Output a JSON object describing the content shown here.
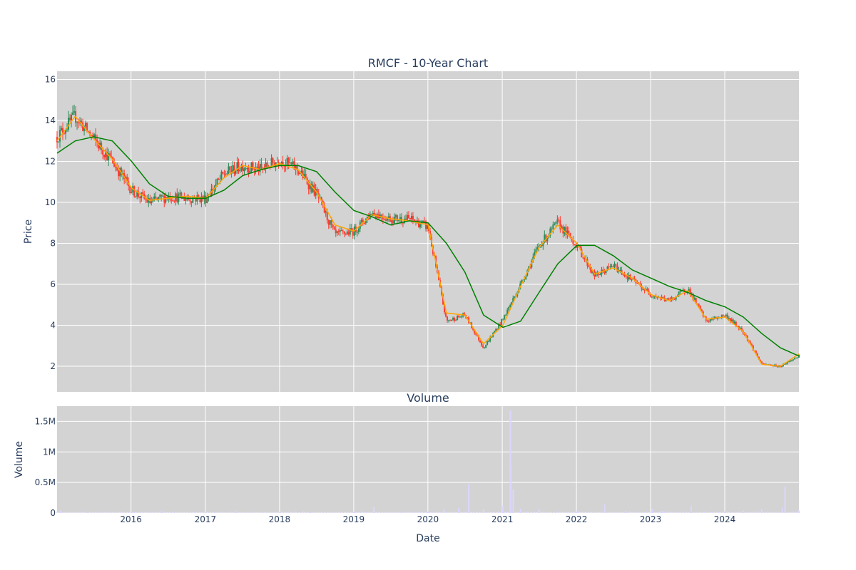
{
  "chart_data": [
    {
      "type": "candlestick",
      "title": "RMCF - 10-Year Chart",
      "ylabel": "Price",
      "ylim": [
        0.75,
        16.4
      ],
      "yticks": [
        2,
        4,
        6,
        8,
        10,
        12,
        14,
        16
      ],
      "x_range": [
        "2015-01-02",
        "2024-12-31"
      ],
      "grid": true,
      "background": "#d3d3d3",
      "up_color": "#2e8b57",
      "down_color": "#ff3b30",
      "series": [
        {
          "name": "",
          "kind": "ohlc",
          "color": "#ff3b30",
          "x": [
            "2015-01-02",
            "2015-04-01",
            "2015-07-01",
            "2015-10-01",
            "2016-01-04",
            "2016-04-01",
            "2016-07-01",
            "2016-10-03",
            "2017-01-03",
            "2017-04-03",
            "2017-07-03",
            "2017-10-02",
            "2018-01-02",
            "2018-04-02",
            "2018-07-02",
            "2018-10-01",
            "2019-01-02",
            "2019-04-01",
            "2019-07-01",
            "2019-10-01",
            "2020-01-02",
            "2020-04-01",
            "2020-07-01",
            "2020-10-01",
            "2021-01-04",
            "2021-04-01",
            "2021-07-01",
            "2021-10-01",
            "2022-01-03",
            "2022-04-01",
            "2022-07-01",
            "2022-10-03",
            "2023-01-03",
            "2023-04-03",
            "2023-07-03",
            "2023-10-02",
            "2024-01-02",
            "2024-04-01",
            "2024-07-01",
            "2024-10-01",
            "2024-12-31"
          ],
          "close": [
            13.2,
            14.2,
            13.1,
            12.0,
            10.6,
            10.0,
            10.3,
            10.2,
            10.2,
            11.4,
            11.8,
            11.6,
            12.1,
            11.6,
            10.4,
            8.4,
            8.6,
            9.5,
            9.2,
            9.2,
            8.8,
            4.2,
            4.5,
            2.9,
            4.3,
            6.0,
            7.9,
            9.0,
            7.9,
            6.4,
            6.9,
            6.2,
            5.5,
            5.2,
            5.8,
            4.2,
            4.5,
            3.7,
            2.1,
            2.0,
            2.5
          ]
        },
        {
          "name": "",
          "kind": "moving_average_short",
          "color": "#ffa500",
          "x": [
            "2015-01-02",
            "2015-04-01",
            "2015-07-01",
            "2015-10-01",
            "2016-01-04",
            "2016-04-01",
            "2016-07-01",
            "2016-10-03",
            "2017-01-03",
            "2017-04-03",
            "2017-07-03",
            "2017-10-02",
            "2018-01-02",
            "2018-04-02",
            "2018-07-02",
            "2018-10-01",
            "2019-01-02",
            "2019-04-01",
            "2019-07-01",
            "2019-10-01",
            "2020-01-02",
            "2020-04-01",
            "2020-07-01",
            "2020-10-01",
            "2021-01-04",
            "2021-04-01",
            "2021-07-01",
            "2021-10-01",
            "2022-01-03",
            "2022-04-01",
            "2022-07-01",
            "2022-10-03",
            "2023-01-03",
            "2023-04-03",
            "2023-07-03",
            "2023-10-02",
            "2024-01-02",
            "2024-04-01",
            "2024-07-01",
            "2024-10-01",
            "2024-12-31"
          ],
          "values": [
            13.0,
            14.2,
            13.1,
            12.1,
            10.7,
            10.1,
            10.2,
            10.3,
            10.2,
            11.2,
            11.8,
            11.6,
            11.9,
            11.6,
            10.5,
            8.9,
            8.6,
            9.4,
            9.2,
            9.1,
            8.9,
            4.6,
            4.5,
            3.1,
            4.0,
            5.9,
            7.8,
            8.9,
            8.0,
            6.5,
            6.8,
            6.3,
            5.5,
            5.2,
            5.7,
            4.3,
            4.4,
            3.7,
            2.1,
            2.0,
            2.6
          ]
        },
        {
          "name": "",
          "kind": "moving_average_long",
          "color": "#008000",
          "x": [
            "2015-01-02",
            "2015-04-01",
            "2015-07-01",
            "2015-10-01",
            "2016-01-04",
            "2016-04-01",
            "2016-07-01",
            "2016-10-03",
            "2017-01-03",
            "2017-04-03",
            "2017-07-03",
            "2017-10-02",
            "2018-01-02",
            "2018-04-02",
            "2018-07-02",
            "2018-10-01",
            "2019-01-02",
            "2019-04-01",
            "2019-07-01",
            "2019-10-01",
            "2020-01-02",
            "2020-04-01",
            "2020-07-01",
            "2020-10-01",
            "2021-01-04",
            "2021-04-01",
            "2021-07-01",
            "2021-10-01",
            "2022-01-03",
            "2022-04-01",
            "2022-07-01",
            "2022-10-03",
            "2023-01-03",
            "2023-04-03",
            "2023-07-03",
            "2023-10-02",
            "2024-01-02",
            "2024-04-01",
            "2024-07-01",
            "2024-10-01",
            "2024-12-31"
          ],
          "values": [
            12.4,
            13.0,
            13.2,
            13.0,
            12.0,
            10.9,
            10.3,
            10.2,
            10.2,
            10.6,
            11.3,
            11.6,
            11.8,
            11.8,
            11.5,
            10.5,
            9.6,
            9.3,
            8.9,
            9.1,
            9.0,
            8.0,
            6.6,
            4.5,
            3.9,
            4.2,
            5.6,
            7.0,
            7.9,
            7.9,
            7.4,
            6.7,
            6.3,
            5.9,
            5.6,
            5.2,
            4.9,
            4.4,
            3.6,
            2.9,
            2.5
          ]
        }
      ]
    },
    {
      "type": "bar",
      "title": "Volume",
      "xlabel": "Date",
      "ylabel": "Volume",
      "ylim": [
        0,
        1750000
      ],
      "ytick_values": [
        0,
        500000,
        1000000,
        1500000
      ],
      "ytick_labels": [
        "0",
        "0.5M",
        "1M",
        "1.5M"
      ],
      "xtick_labels": [
        "2016",
        "2017",
        "2018",
        "2019",
        "2020",
        "2021",
        "2022",
        "2023",
        "2024"
      ],
      "grid": true,
      "background": "#d3d3d3",
      "bar_color": "#dcd6ff",
      "series": [
        {
          "name": "",
          "x": [
            "2015-01-20",
            "2015-06-01",
            "2016-01-04",
            "2016-06-01",
            "2017-01-03",
            "2017-06-01",
            "2018-01-02",
            "2018-06-01",
            "2019-01-02",
            "2019-04-10",
            "2019-09-02",
            "2020-01-02",
            "2020-03-20",
            "2020-06-01",
            "2020-07-20",
            "2020-10-01",
            "2021-01-04",
            "2021-02-10",
            "2021-02-12",
            "2021-02-24",
            "2021-04-01",
            "2021-07-01",
            "2022-01-03",
            "2022-05-20",
            "2022-09-01",
            "2023-01-09",
            "2023-03-01",
            "2023-07-20",
            "2024-01-02",
            "2024-04-01",
            "2024-07-01",
            "2024-10-10",
            "2024-10-24",
            "2024-12-31"
          ],
          "values": [
            40000,
            15000,
            15000,
            25000,
            20000,
            20000,
            15000,
            15000,
            20000,
            100000,
            20000,
            25000,
            60000,
            80000,
            470000,
            60000,
            120000,
            1680000,
            780000,
            380000,
            70000,
            60000,
            30000,
            140000,
            30000,
            70000,
            30000,
            120000,
            30000,
            40000,
            60000,
            90000,
            430000,
            40000
          ]
        }
      ]
    }
  ]
}
